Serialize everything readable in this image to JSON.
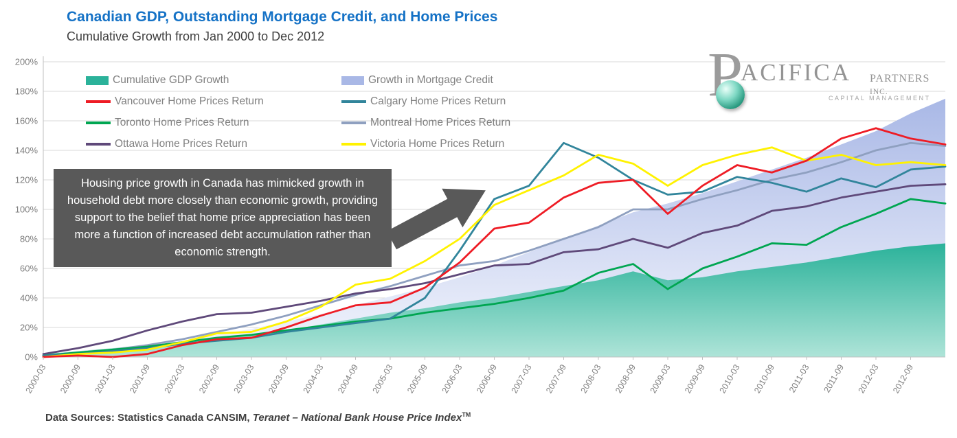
{
  "page": {
    "title": "Canadian GDP, Outstanding Mortgage Credit, and Home Prices",
    "subtitle": "Cumulative  Growth from Jan 2000 to Dec 2012",
    "title_color": "#1572c6"
  },
  "logo": {
    "letter_p": "P",
    "name_rest": "ACIFICA",
    "partners": "PARTNERS",
    "inc": "INC.",
    "tagline": "CAPITAL MANAGEMENT"
  },
  "annotation": {
    "text": "Housing price growth in Canada has mimicked growth in household debt more closely than economic growth, providing support to the belief that home price appreciation has been more a function of increased debt accumulation rather than economic strength.",
    "bg_color": "#595959",
    "text_color": "#ffffff"
  },
  "footer": {
    "prefix": "Data Sources:  Statistics Canada CANSIM, ",
    "source_italic": "Teranet – National Bank House Price Index",
    "tm": "TM"
  },
  "chart_data": {
    "type": "area",
    "title": "Canadian GDP, Outstanding Mortgage Credit, and Home Prices",
    "subtitle": "Cumulative Growth from Jan 2000 to Dec 2012",
    "xlabel": "",
    "ylabel": "",
    "ylim": [
      0,
      200
    ],
    "y_tick_step": 20,
    "y_tick_suffix": "%",
    "grid": "horizontal",
    "grid_color": "#d9d9d9",
    "axis_color": "#bfbfbf",
    "tick_text_color": "#7f7f7f",
    "legend_position": "top-left-inside",
    "categories": [
      "2000-03",
      "2000-09",
      "2001-03",
      "2001-09",
      "2002-03",
      "2002-09",
      "2003-03",
      "2003-09",
      "2004-03",
      "2004-09",
      "2005-03",
      "2005-09",
      "2006-03",
      "2006-09",
      "2007-03",
      "2007-09",
      "2008-03",
      "2008-09",
      "2009-03",
      "2009-09",
      "2010-03",
      "2010-09",
      "2011-03",
      "2011-09",
      "2012-03",
      "2012-09",
      ""
    ],
    "series": [
      {
        "name": "Cumulative GDP Growth",
        "type": "area",
        "color": "#2bb29a",
        "color2": "#aee4d8",
        "z": 0,
        "values": [
          2,
          4,
          6,
          8,
          10,
          13,
          15,
          18,
          22,
          26,
          30,
          33,
          37,
          40,
          44,
          48,
          52,
          58,
          52,
          54,
          58,
          61,
          64,
          68,
          72,
          75,
          77
        ]
      },
      {
        "name": "Growth in Mortgage Credit",
        "type": "area",
        "color": "#a9b8e6",
        "color2": "#f4f6fd",
        "z": 0,
        "values": [
          1,
          3,
          5,
          8,
          11,
          15,
          19,
          24,
          29,
          35,
          41,
          47,
          54,
          62,
          71,
          80,
          89,
          98,
          104,
          111,
          119,
          127,
          135,
          144,
          153,
          165,
          175
        ]
      },
      {
        "name": "Vancouver Home Prices  Return",
        "type": "line",
        "color": "#ee1c25",
        "z": 6,
        "values": [
          0,
          1,
          0,
          2,
          8,
          12,
          13,
          20,
          28,
          35,
          37,
          47,
          64,
          87,
          91,
          108,
          118,
          120,
          97,
          116,
          130,
          125,
          133,
          148,
          155,
          148,
          144
        ]
      },
      {
        "name": "Calgary Home Prices  Return",
        "type": "line",
        "color": "#31859b",
        "z": 4,
        "values": [
          1,
          2,
          4,
          6,
          9,
          11,
          13,
          17,
          20,
          23,
          26,
          40,
          72,
          107,
          116,
          145,
          135,
          120,
          110,
          112,
          122,
          118,
          112,
          121,
          115,
          127,
          129
        ]
      },
      {
        "name": "Toronto Home Prices  Return",
        "type": "line",
        "color": "#00a651",
        "z": 3,
        "values": [
          1,
          3,
          5,
          7,
          10,
          13,
          15,
          18,
          21,
          24,
          26,
          30,
          33,
          36,
          40,
          45,
          57,
          63,
          46,
          60,
          68,
          77,
          76,
          88,
          97,
          107,
          104
        ]
      },
      {
        "name": "Montreal Home Prices  Return",
        "type": "line",
        "color": "#8fa0c0",
        "z": 1,
        "values": [
          1,
          3,
          5,
          8,
          12,
          17,
          22,
          28,
          35,
          42,
          48,
          55,
          62,
          65,
          72,
          80,
          88,
          100,
          100,
          107,
          113,
          120,
          125,
          132,
          140,
          145,
          143
        ]
      },
      {
        "name": "Ottawa Home Prices  Return",
        "type": "line",
        "color": "#5f497a",
        "z": 2,
        "values": [
          2,
          6,
          11,
          18,
          24,
          29,
          30,
          34,
          38,
          43,
          46,
          50,
          56,
          62,
          63,
          71,
          73,
          80,
          74,
          84,
          89,
          99,
          102,
          108,
          112,
          116,
          117
        ]
      },
      {
        "name": "Victoria Home Prices  Return",
        "type": "line",
        "color": "#fff200",
        "z": 5,
        "values": [
          0,
          2,
          3,
          5,
          10,
          16,
          17,
          24,
          34,
          49,
          53,
          65,
          80,
          103,
          113,
          123,
          137,
          131,
          116,
          130,
          137,
          142,
          133,
          137,
          130,
          132,
          130
        ]
      }
    ]
  }
}
